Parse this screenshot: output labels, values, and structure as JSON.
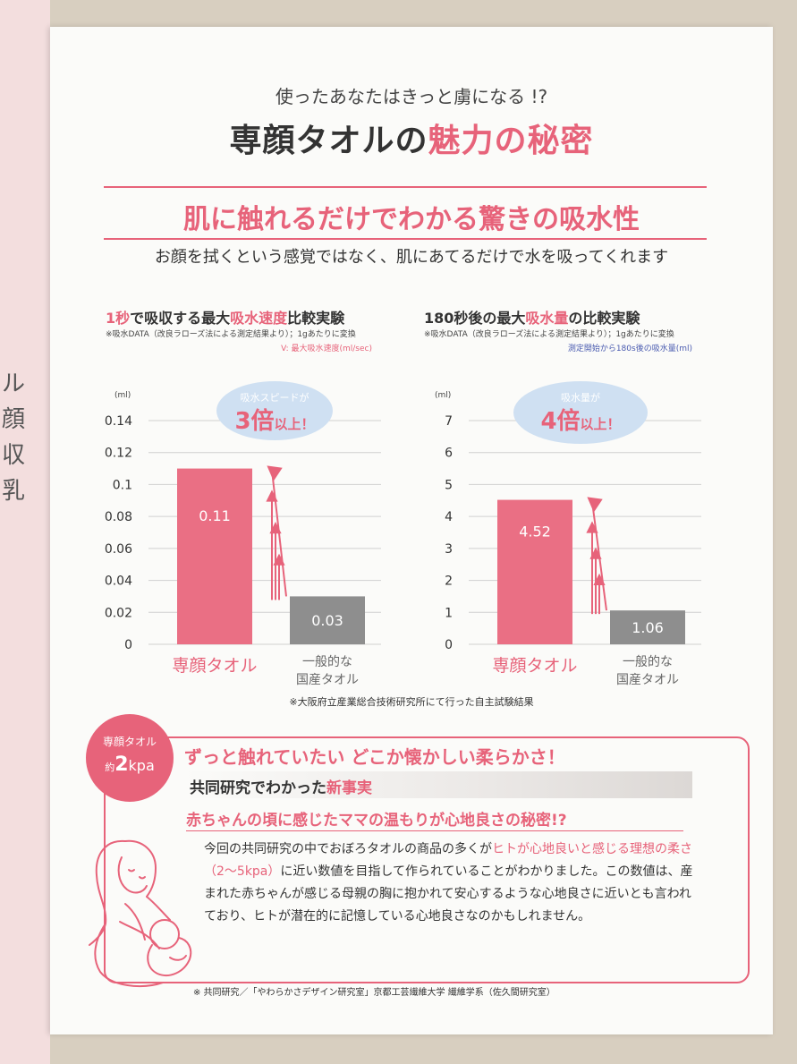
{
  "prev_page": {
    "glyphs": [
      "ル",
      "顔",
      "収",
      "乳"
    ]
  },
  "header": {
    "tagline": "使ったあなたはきっと虜になる !?",
    "title_part1": "専顔タオルの",
    "title_part2": "魅力の秘密",
    "section_title": "肌に触れるだけでわかる驚きの吸水性",
    "lead": "お顔を拭くという感覚ではなく、肌にあてるだけで水を吸ってくれます"
  },
  "chart_left": {
    "title_a": "1秒",
    "title_b": "で吸収する最大",
    "title_c": "吸水速度",
    "title_d": "比較実験",
    "note": "※吸水DATA（改良ラローズ法による測定結果より）；1gあたりに変換",
    "legend": "V: 最大吸水速度(ml/sec)",
    "bubble_line1": "吸水スピードが",
    "bubble_big": "3倍",
    "bubble_tail": "以上！"
  },
  "chart_right": {
    "title_a": "180秒後の最大",
    "title_b": "吸水量",
    "title_c": "の比較実験",
    "note": "※吸水DATA（改良ラローズ法による測定結果より）；1gあたりに変換",
    "legend": "測定開始から180s後の吸水量(ml)",
    "bubble_line1": "吸水量が",
    "bubble_big": "4倍",
    "bubble_tail": "以上！"
  },
  "chart_data": [
    {
      "type": "bar",
      "title": "1秒で吸収する最大吸水速度比較実験",
      "ylabel": "(ml)",
      "ylim": [
        0,
        0.14
      ],
      "yticks": [
        "0",
        "0.02",
        "0.04",
        "0.06",
        "0.08",
        "0.1",
        "0.12",
        "0.14"
      ],
      "categories": [
        [
          "専顔タオル"
        ],
        [
          "一般的な",
          "国産タオル"
        ]
      ],
      "values": [
        0.11,
        0.03
      ],
      "value_labels": [
        "0.11",
        "0.03"
      ],
      "colors": [
        "#ea6f84",
        "#8e8e8e"
      ],
      "grid": true
    },
    {
      "type": "bar",
      "title": "180秒後の最大吸水量の比較実験",
      "ylabel": "(ml)",
      "ylim": [
        0,
        7
      ],
      "yticks": [
        "0",
        "1",
        "2",
        "3",
        "4",
        "5",
        "6",
        "7"
      ],
      "categories": [
        [
          "専顔タオル"
        ],
        [
          "一般的な",
          "国産タオル"
        ]
      ],
      "values": [
        4.52,
        1.06
      ],
      "value_labels": [
        "4.52",
        "1.06"
      ],
      "colors": [
        "#ea6f84",
        "#8e8e8e"
      ],
      "grid": true
    }
  ],
  "footnote_test": "※大阪府立産業総合技術研究所にて行った自主試験結果",
  "softness": {
    "badge_line1": "専顔タオル",
    "badge_prefix": "約",
    "badge_value": "2",
    "badge_unit": "kpa",
    "headline": "ずっと触れていたい どこか懐かしい柔らかさ！",
    "subhead_a": "共同研究でわかった",
    "subhead_b": "新事実",
    "question": "赤ちゃんの頃に感じたママの温もりが心地良さの秘密!?",
    "body_1": "今回の共同研究の中でおぼろタオルの商品の多くが",
    "body_pink": "ヒトが心地良いと感じる理想の柔さ（2〜5kpa）",
    "body_2": "に近い数値を目指して作られていることがわかりました。この数値は、産まれた赤ちゃんが感じる母親の胸に抱かれて安心するような心地良さに近いとも言われており、ヒトが潜在的に記憶している心地良さなのかもしれません。",
    "footnote": "※ 共同研究／「やわらかさデザイン研究室」京都工芸繊維大学 繊維学系（佐久間研究室）"
  }
}
